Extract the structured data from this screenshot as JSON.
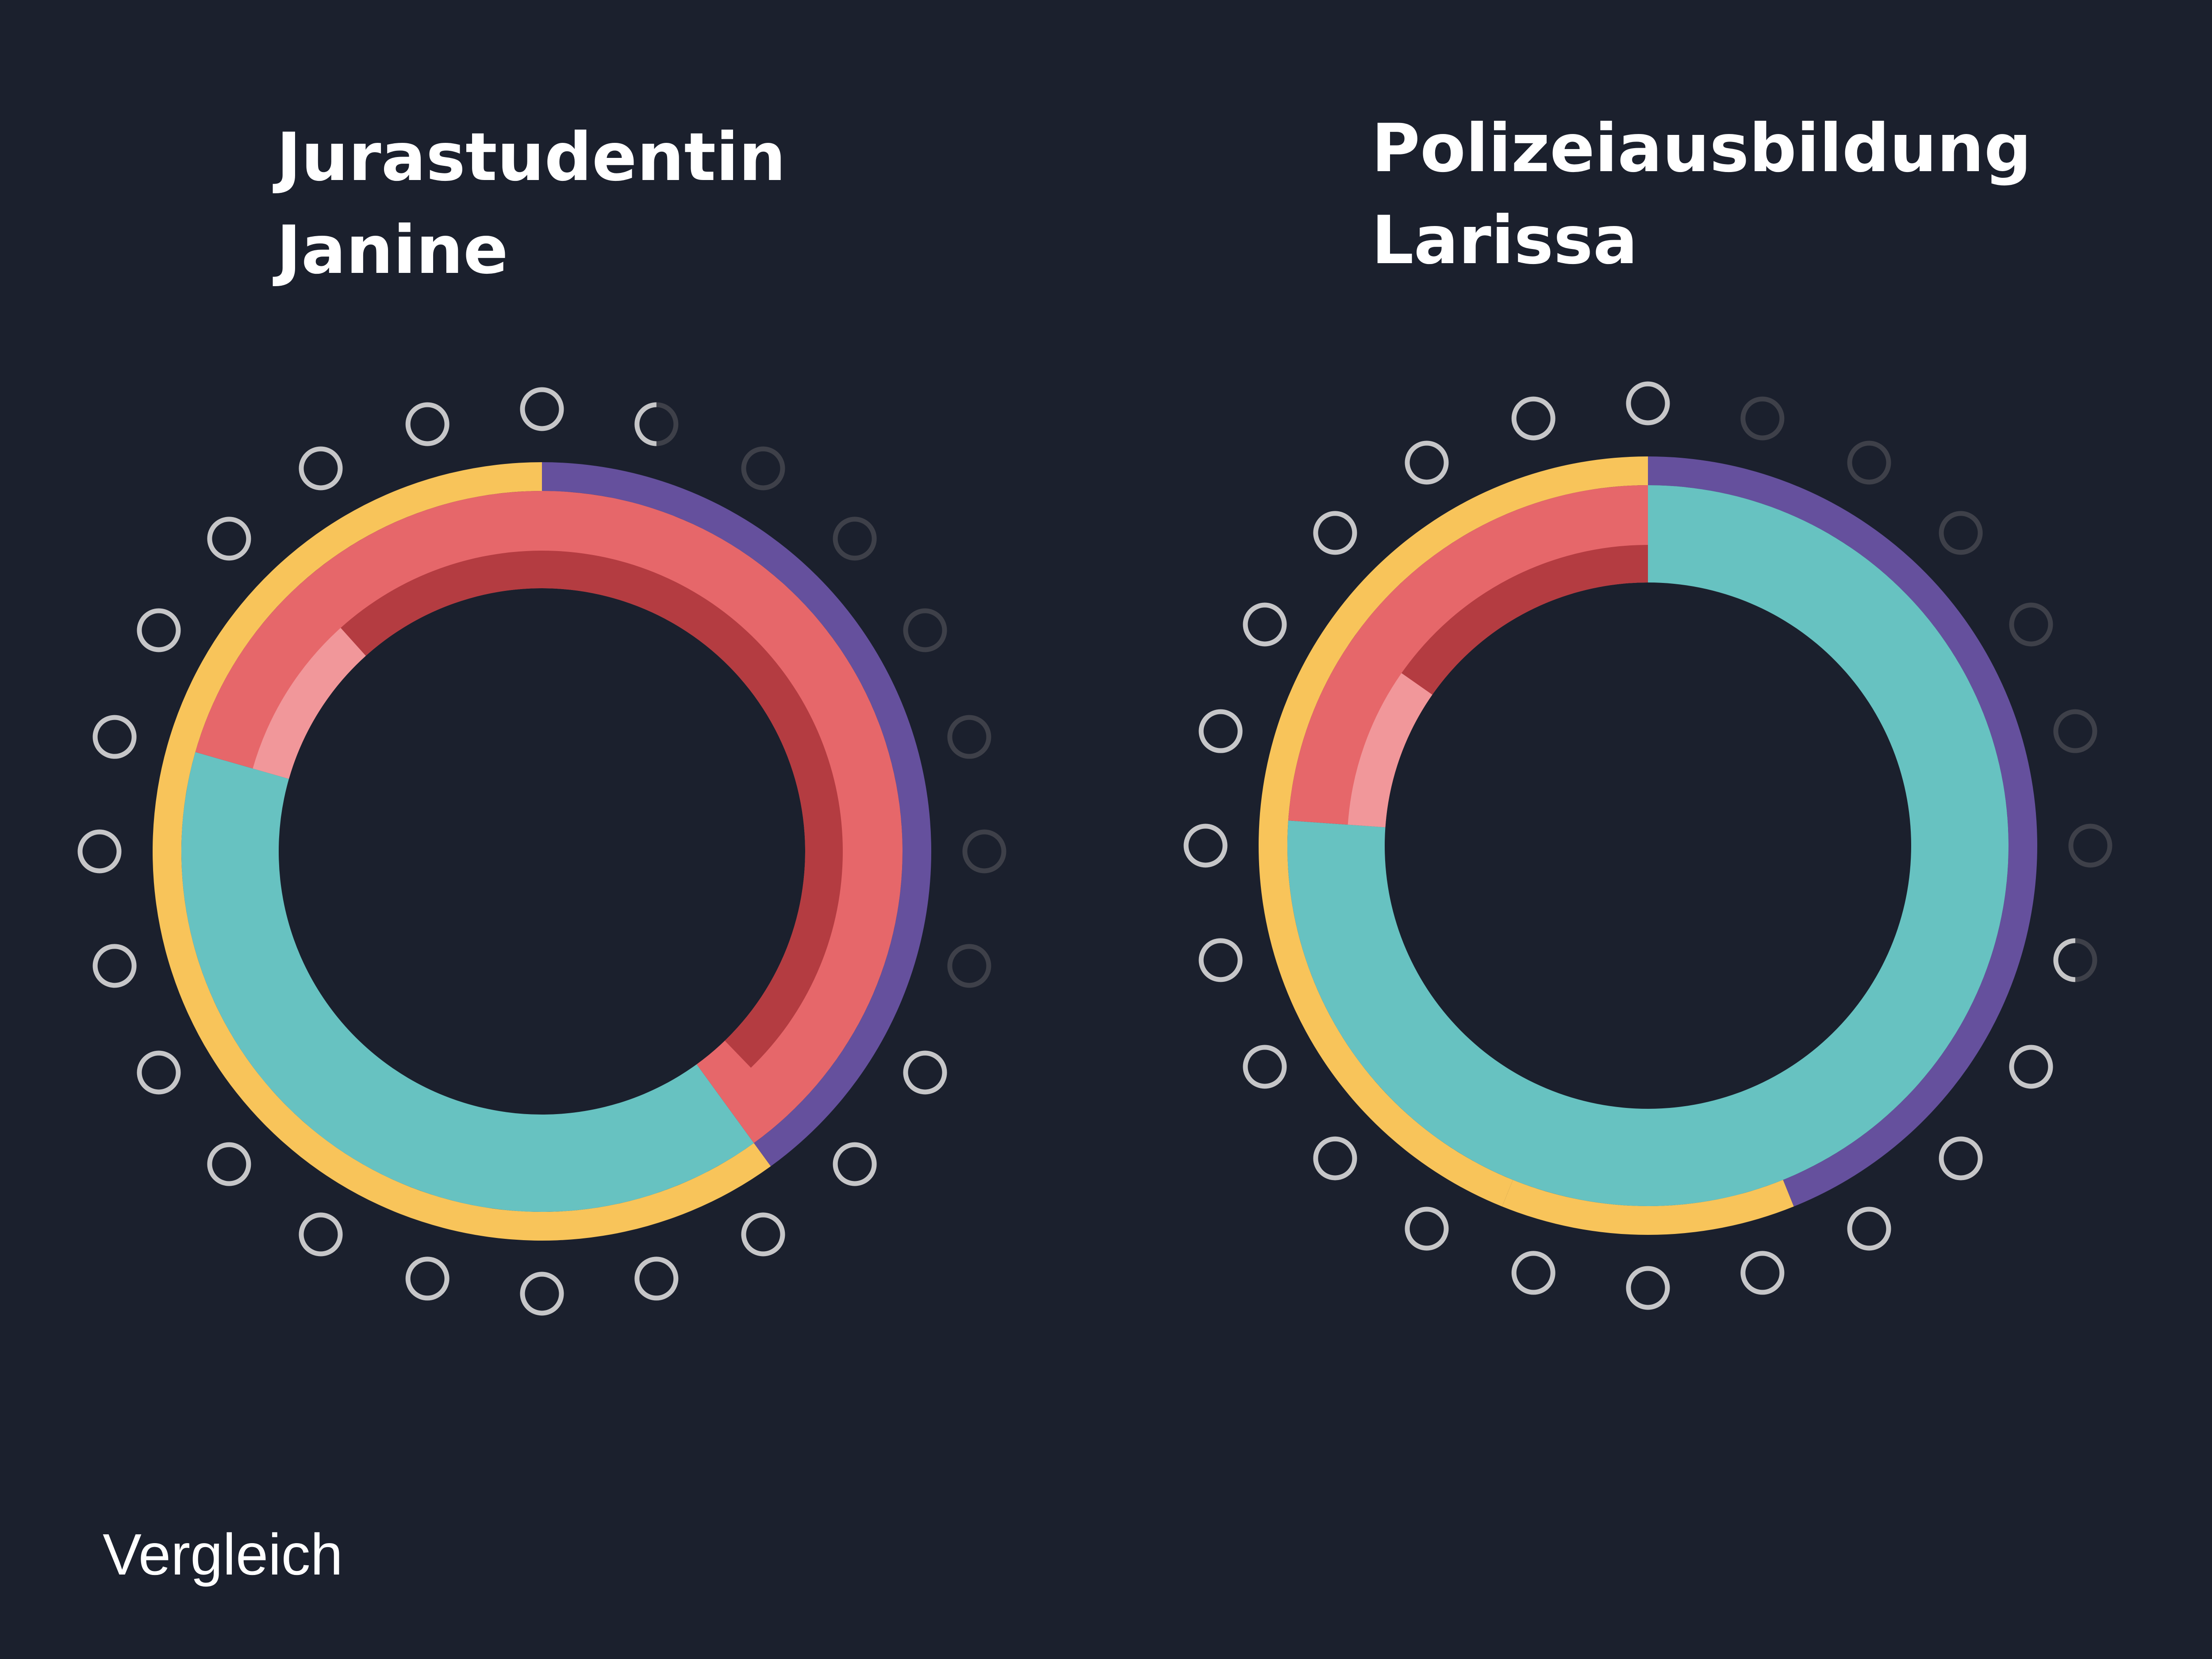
{
  "chart_data": [
    {
      "type": "radial-arc",
      "title_lines": [
        "Jurastudentin",
        "Janine"
      ],
      "colors": {
        "yellow": "#f8c45a",
        "purple": "#65509d",
        "teal": "#67c2c1",
        "coral": "#e6676a",
        "darkred": "#b43c41",
        "pink": "#f1979a",
        "slot_on": "#c6c6c8",
        "slot_off": "#3e4049"
      },
      "slots_on": [
        1,
        0.5,
        0,
        0,
        0,
        0,
        0,
        0,
        1,
        1,
        1,
        1,
        1,
        1,
        1,
        1,
        1,
        1,
        1,
        1,
        1,
        1,
        1,
        1
      ]
    },
    {
      "type": "radial-arc",
      "title_lines": [
        "Polizeiausbildung",
        "Larissa"
      ],
      "colors": {
        "yellow": "#f8c45a",
        "purple": "#65509d",
        "teal": "#67c2c1",
        "coral": "#e6676a",
        "darkred": "#b43c41",
        "pink": "#f1979a",
        "slot_on": "#c6c6c8",
        "slot_off": "#3e4049"
      },
      "slots_on": [
        1,
        0,
        0,
        0,
        0,
        0,
        0,
        0.5,
        1,
        1,
        1,
        1,
        1,
        1,
        1,
        1,
        1,
        1,
        1,
        1,
        1,
        1,
        1,
        1
      ]
    }
  ],
  "footer_label": "Vergleich"
}
